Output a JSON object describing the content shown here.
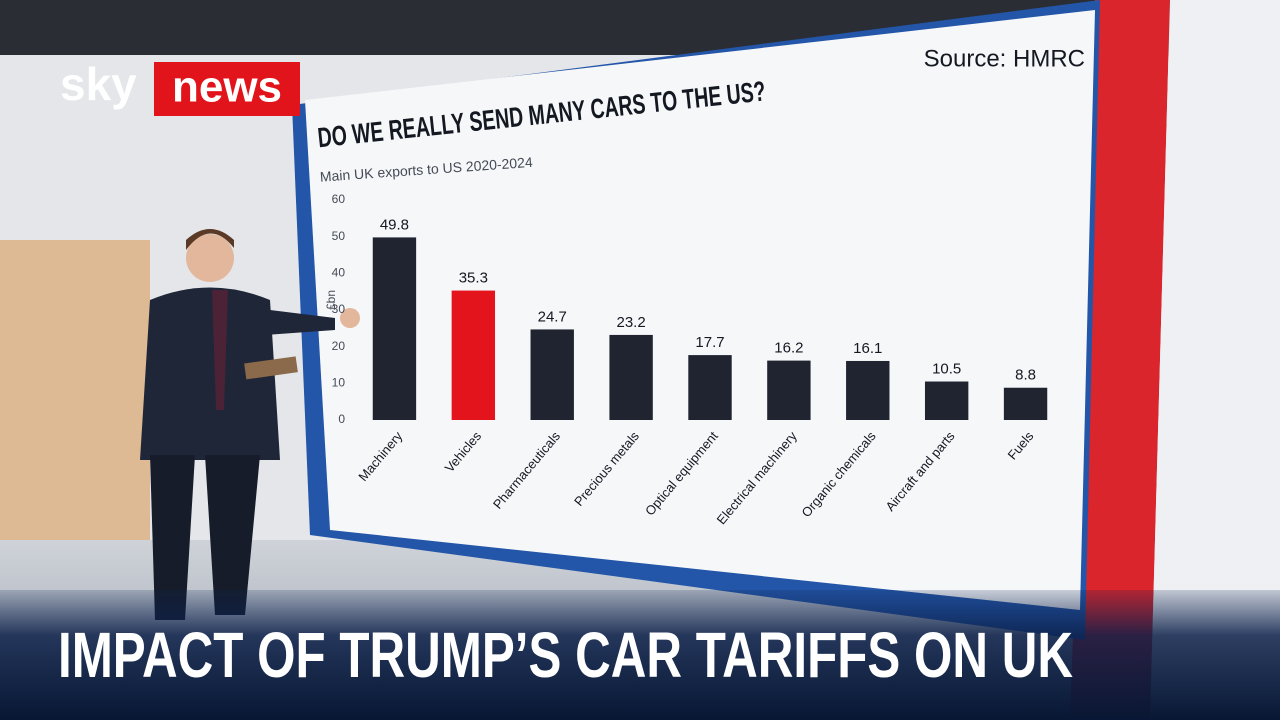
{
  "logo": {
    "brand": "sky",
    "product": "news"
  },
  "headline": "IMPACT OF TRUMP’S CAR TARIFFS ON UK",
  "chart_data": {
    "type": "bar",
    "title": "DO WE REALLY SEND MANY CARS TO THE US?",
    "subtitle": "Main UK exports to US 2020-2024",
    "source": "Source: HMRC",
    "y_label": "£bn",
    "categories": [
      "Machinery",
      "Vehicles",
      "Pharmaceuticals",
      "Precious metals",
      "Optical equipment",
      "Electrical machinery",
      "Organic chemicals",
      "Aircraft and parts",
      "Fuels"
    ],
    "values": [
      49.8,
      35.3,
      24.7,
      23.2,
      17.7,
      16.2,
      16.1,
      10.5,
      8.8
    ],
    "colors": [
      "#1f2430",
      "#e3141b",
      "#1f2430",
      "#1f2430",
      "#1f2430",
      "#1f2430",
      "#1f2430",
      "#1f2430",
      "#1f2430"
    ],
    "ylim": [
      0,
      60
    ],
    "yticks": [
      0,
      10,
      20,
      30,
      40,
      50,
      60
    ],
    "grid": false
  }
}
